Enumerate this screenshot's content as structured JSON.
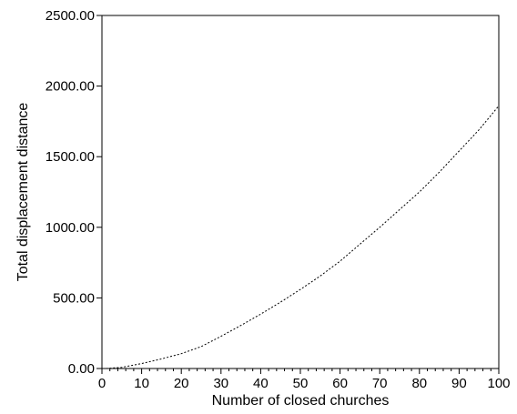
{
  "chart_data": {
    "type": "line",
    "title": "",
    "xlabel": "Number of closed churches",
    "ylabel": "Total displacement distance",
    "xlim": [
      0,
      100
    ],
    "ylim": [
      0,
      2500
    ],
    "x_major_ticks": [
      0,
      10,
      20,
      30,
      40,
      50,
      60,
      70,
      80,
      90,
      100
    ],
    "x_tick_labels": [
      "0",
      "10",
      "20",
      "30",
      "40",
      "50",
      "60",
      "70",
      "80",
      "90",
      "100"
    ],
    "y_major_ticks": [
      0,
      500,
      1000,
      1500,
      2000,
      2500
    ],
    "y_tick_labels": [
      "0.00",
      "500.00",
      "1000.00",
      "1500.00",
      "2000.00",
      "2500.00"
    ],
    "grid": false,
    "legend": "none",
    "line_style": "dotted",
    "series": [
      {
        "x": [
          1,
          5,
          10,
          15,
          20,
          25,
          30,
          35,
          40,
          45,
          50,
          55,
          60,
          65,
          70,
          75,
          80,
          85,
          90,
          95,
          100
        ],
        "values": [
          0,
          8,
          35,
          68,
          105,
          155,
          228,
          305,
          385,
          470,
          560,
          655,
          760,
          880,
          1000,
          1125,
          1250,
          1390,
          1540,
          1690,
          1860
        ]
      }
    ]
  }
}
